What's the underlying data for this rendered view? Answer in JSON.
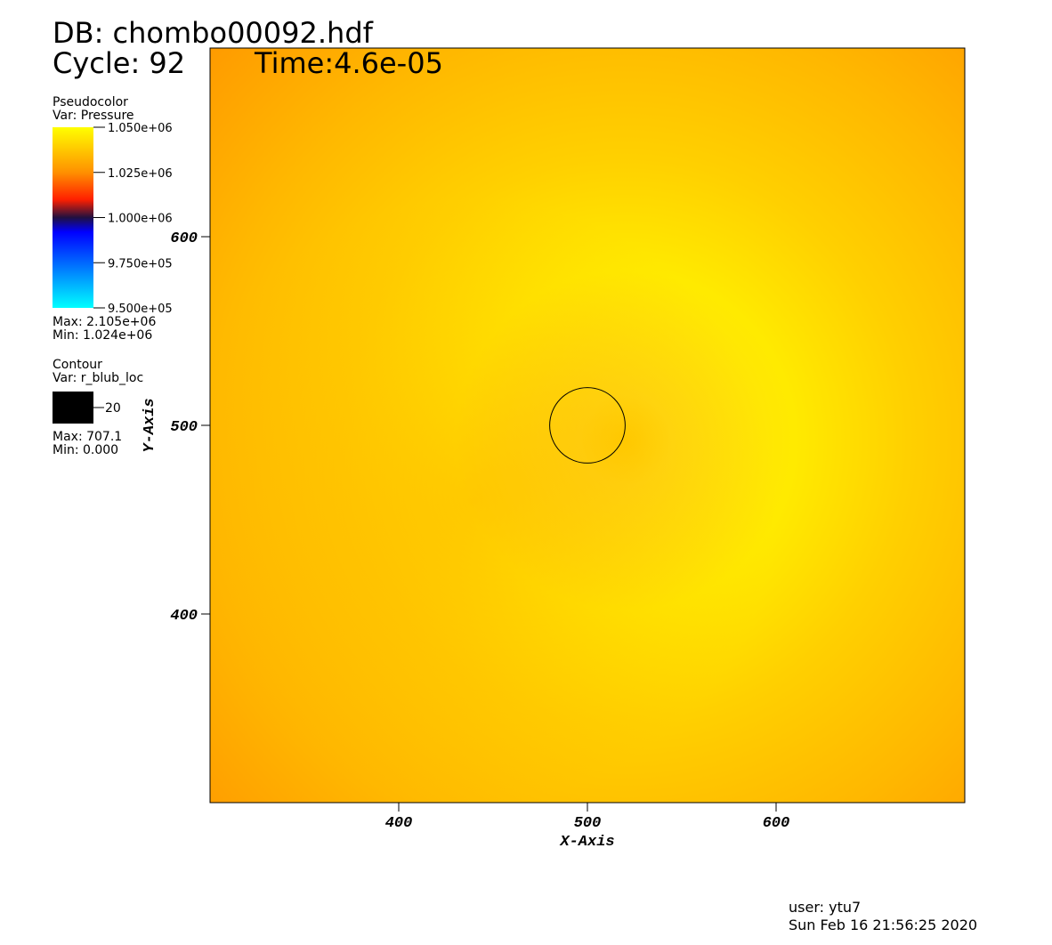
{
  "chart_data": {
    "type": "pseudocolor",
    "title": "DB: chombo00092.hdf",
    "cycle": "Cycle: 92",
    "time": "Time:4.6e-05",
    "x_label": "X-Axis",
    "y_label": "Y-Axis",
    "xlim": [
      300,
      700
    ],
    "ylim": [
      300,
      700
    ],
    "xticks": [
      400,
      500,
      600
    ],
    "yticks": [
      400,
      500,
      600
    ],
    "contour_center": [
      500,
      500
    ],
    "contour_level": 20,
    "contour_color": "#000000",
    "pseudocolor_legend": {
      "title": "Pseudocolor",
      "var": "Var: Pressure",
      "range": [
        950000,
        1050000
      ],
      "ticks": [
        {
          "value": 1050000,
          "label": "1.050e+06"
        },
        {
          "value": 1025000,
          "label": "1.025e+06"
        },
        {
          "value": 1000000,
          "label": "1.000e+06"
        },
        {
          "value": 975000,
          "label": "9.750e+05"
        },
        {
          "value": 950000,
          "label": "9.500e+05"
        }
      ],
      "max": "Max: 2.105e+06",
      "min": "Min:  1.024e+06"
    },
    "contour_legend": {
      "title": "Contour",
      "var": "Var: r_blub_loc",
      "level_label": "20",
      "max": "Max: 707.1",
      "min": "Min: 0.000"
    },
    "user": "user: ytu7",
    "date": "Sun Feb 16 21:56:25 2020"
  }
}
